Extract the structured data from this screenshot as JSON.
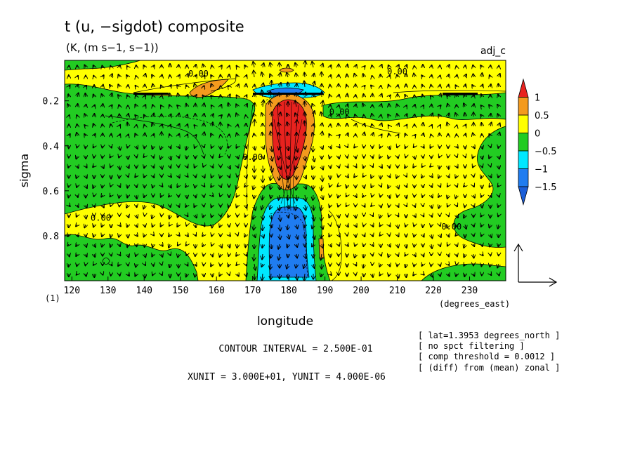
{
  "chart_data": {
    "type": "contour",
    "title": "t (u, −sigdot) composite",
    "subtitle": "(K, (m s−1, s−1))",
    "tag": "adj_c",
    "xlabel": "longitude",
    "xunits": "(degrees_east)",
    "ylabel": "sigma",
    "panel_label": "(1)",
    "x_ticks": [
      "120",
      "130",
      "140",
      "150",
      "160",
      "170",
      "180",
      "190",
      "200",
      "210",
      "220",
      "230"
    ],
    "x_tick_values": [
      120,
      130,
      140,
      150,
      160,
      170,
      180,
      190,
      200,
      210,
      220,
      230
    ],
    "y_ticks": [
      "0.2",
      "0.4",
      "0.6",
      "0.8"
    ],
    "y_tick_values": [
      0.2,
      0.4,
      0.6,
      0.8
    ],
    "xlim": [
      118,
      240
    ],
    "ylim": [
      0.02,
      1.0
    ],
    "y_inverted": true,
    "colorbar": {
      "labels": [
        "1",
        "0.5",
        "0",
        "−0.5",
        "−1",
        "−1.5"
      ],
      "levels": [
        1,
        0.5,
        0,
        -0.5,
        -1,
        -1.5
      ],
      "colors": [
        "#e8221e",
        "#f39a1e",
        "#ffff00",
        "#22cc22",
        "#00e8ff",
        "#1f7cf0",
        "#1b5ed8"
      ]
    },
    "contour_labels": [
      {
        "text": "0.00",
        "x": 155,
        "y": 0.08
      },
      {
        "text": "0.00",
        "x": 210,
        "y": 0.07
      },
      {
        "text": "0.00",
        "x": 194,
        "y": 0.25
      },
      {
        "text": "0.00",
        "x": 128,
        "y": 0.72
      },
      {
        "text": "0.00",
        "x": 225,
        "y": 0.76
      },
      {
        "text": "0.00",
        "x": 170,
        "y": 0.45
      }
    ],
    "contour_interval_text": "CONTOUR INTERVAL = 2.500E-01",
    "unit_text": "XUNIT = 3.000E+01, YUNIT = 4.000E-06",
    "notes": [
      "[ lat=1.3953 degrees_north ]",
      "[ no spct filtering ]",
      "[ comp threshold = 0.0012 ]",
      "[ (diff) from (mean) zonal ]"
    ]
  }
}
